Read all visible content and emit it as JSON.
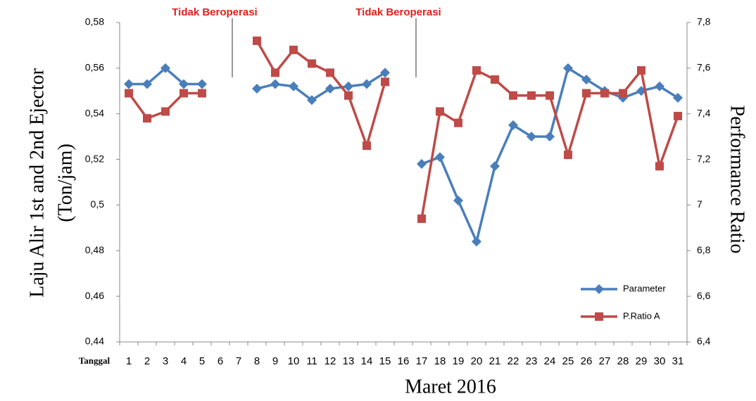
{
  "chart_data": {
    "type": "line",
    "annotations": [
      "Tidak Beroperasi",
      "Tidak Beroperasi"
    ],
    "ylabel": [
      "Laju Alir 1st and 2nd Ejector",
      "(Ton/jam)"
    ],
    "y2label": "Performance Ratio",
    "xlabel_prefix": "Tanggal",
    "xlabel": "Maret 2016",
    "categories": [
      "1",
      "2",
      "3",
      "4",
      "5",
      "6",
      "7",
      "8",
      "9",
      "10",
      "11",
      "12",
      "13",
      "14",
      "15",
      "16",
      "17",
      "18",
      "19",
      "20",
      "21",
      "22",
      "23",
      "24",
      "25",
      "26",
      "27",
      "28",
      "29",
      "30",
      "31"
    ],
    "series": [
      {
        "name": "Parameter",
        "color": "#4a7ebb",
        "marker": "diamond",
        "axis": "y",
        "values": [
          0.553,
          0.553,
          0.56,
          0.553,
          0.553,
          null,
          null,
          0.551,
          0.553,
          0.552,
          0.546,
          0.551,
          0.552,
          0.553,
          0.558,
          null,
          0.518,
          0.521,
          0.502,
          0.484,
          0.517,
          0.535,
          0.53,
          0.53,
          0.56,
          0.555,
          0.55,
          0.547,
          0.55,
          0.552,
          0.547
        ]
      },
      {
        "name": "P.Ratio A",
        "color": "#be4b48",
        "marker": "square",
        "axis": "y2",
        "values": [
          7.49,
          7.38,
          7.41,
          7.49,
          7.49,
          null,
          null,
          7.72,
          7.58,
          7.68,
          7.62,
          7.58,
          7.48,
          7.26,
          7.54,
          null,
          6.94,
          7.41,
          7.36,
          7.59,
          7.55,
          7.48,
          7.48,
          7.48,
          7.22,
          7.49,
          7.49,
          7.49,
          7.59,
          7.17,
          7.39
        ]
      }
    ],
    "ylim": [
      0.44,
      0.58
    ],
    "yticks": [
      {
        "value": 0.44,
        "label": "0,44"
      },
      {
        "value": 0.46,
        "label": "0,46"
      },
      {
        "value": 0.48,
        "label": "0,48"
      },
      {
        "value": 0.5,
        "label": "0,5"
      },
      {
        "value": 0.52,
        "label": "0,52"
      },
      {
        "value": 0.54,
        "label": "0,54"
      },
      {
        "value": 0.56,
        "label": "0,56"
      },
      {
        "value": 0.58,
        "label": "0,58"
      }
    ],
    "y2lim": [
      6.4,
      7.8
    ],
    "y2ticks": [
      {
        "value": 6.4,
        "label": "6,4"
      },
      {
        "value": 6.6,
        "label": "6,6"
      },
      {
        "value": 6.8,
        "label": "6,8"
      },
      7,
      {
        "value": 7.2,
        "label": "7,2"
      },
      {
        "value": 7.4,
        "label": "7,4"
      },
      {
        "value": 7.6,
        "label": "7,6"
      },
      {
        "value": 7.8,
        "label": "7,8"
      }
    ],
    "grid": false,
    "legend": "lower right"
  }
}
